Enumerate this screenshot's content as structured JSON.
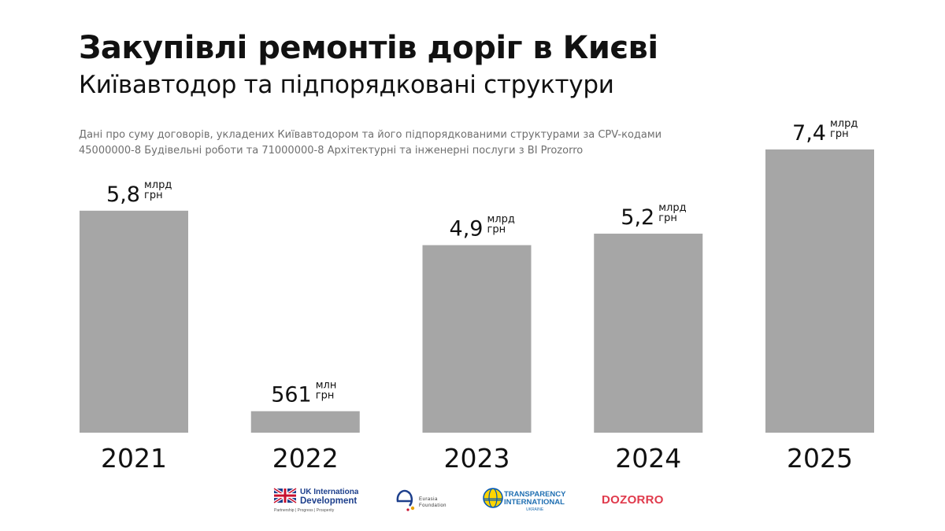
{
  "title": "Закупівлі ремонтів доріг в Києві",
  "subtitle": "Київавтодор та підпорядковані структури",
  "note": [
    "Дані про суму договорів, укладених Київавтодором та його підпорядкованими структурами за CPV-кодами",
    "45000000-8 Будівельні роботи та 71000000-8 Архітектурні та інженерні послуги з ВІ Prozorro"
  ],
  "chart_data": {
    "type": "bar",
    "categories": [
      "2021",
      "2022",
      "2023",
      "2024",
      "2025"
    ],
    "values": [
      5.8,
      0.561,
      4.9,
      5.2,
      7.4
    ],
    "unit": "млрд грн",
    "ylim": [
      0,
      7.4
    ],
    "grid": false,
    "bar_color": "#a6a6a6",
    "labels": [
      {
        "number": "5,8",
        "unit_top": "млрд",
        "unit_bottom": "грн"
      },
      {
        "number": "561",
        "unit_top": "млн",
        "unit_bottom": "грн"
      },
      {
        "number": "4,9",
        "unit_top": "млрд",
        "unit_bottom": "грн"
      },
      {
        "number": "5,2",
        "unit_top": "млрд",
        "unit_bottom": "грн"
      },
      {
        "number": "7,4",
        "unit_top": "млрд",
        "unit_bottom": "грн"
      }
    ]
  },
  "logos": {
    "ukid_line1": "UK International",
    "ukid_line2": "Development",
    "ukid_tagline": "Partnership | Progress | Prosperity",
    "eurasia_line1": "Eurasia",
    "eurasia_line2": "Foundation",
    "ti_line1": "TRANSPARENCY",
    "ti_line2": "INTERNATIONAL",
    "ti_line3": "UKRAINE",
    "dozorro": "DOZORRO"
  }
}
